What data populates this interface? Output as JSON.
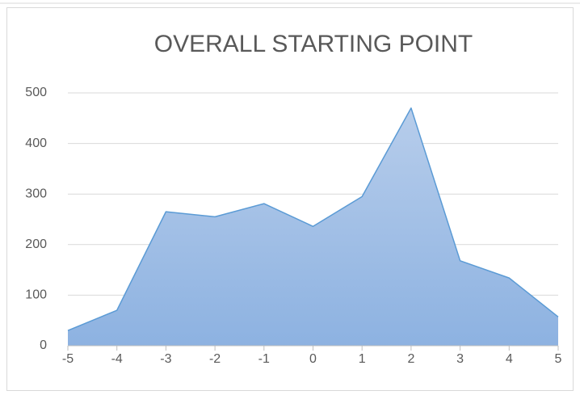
{
  "chart_data": {
    "type": "area",
    "title": "OVERALL STARTING POINT",
    "categories": [
      "-5",
      "-4",
      "-3",
      "-2",
      "-1",
      "0",
      "1",
      "2",
      "3",
      "4",
      "5"
    ],
    "series": [
      {
        "name": "Overall starting point",
        "color": "#5b9bd5",
        "values": [
          30,
          70,
          265,
          255,
          281,
          236,
          295,
          470,
          168,
          134,
          57
        ]
      }
    ],
    "ylim": [
      0,
      500
    ],
    "yticks": [
      0,
      100,
      200,
      300,
      400,
      500
    ],
    "grid": true
  }
}
